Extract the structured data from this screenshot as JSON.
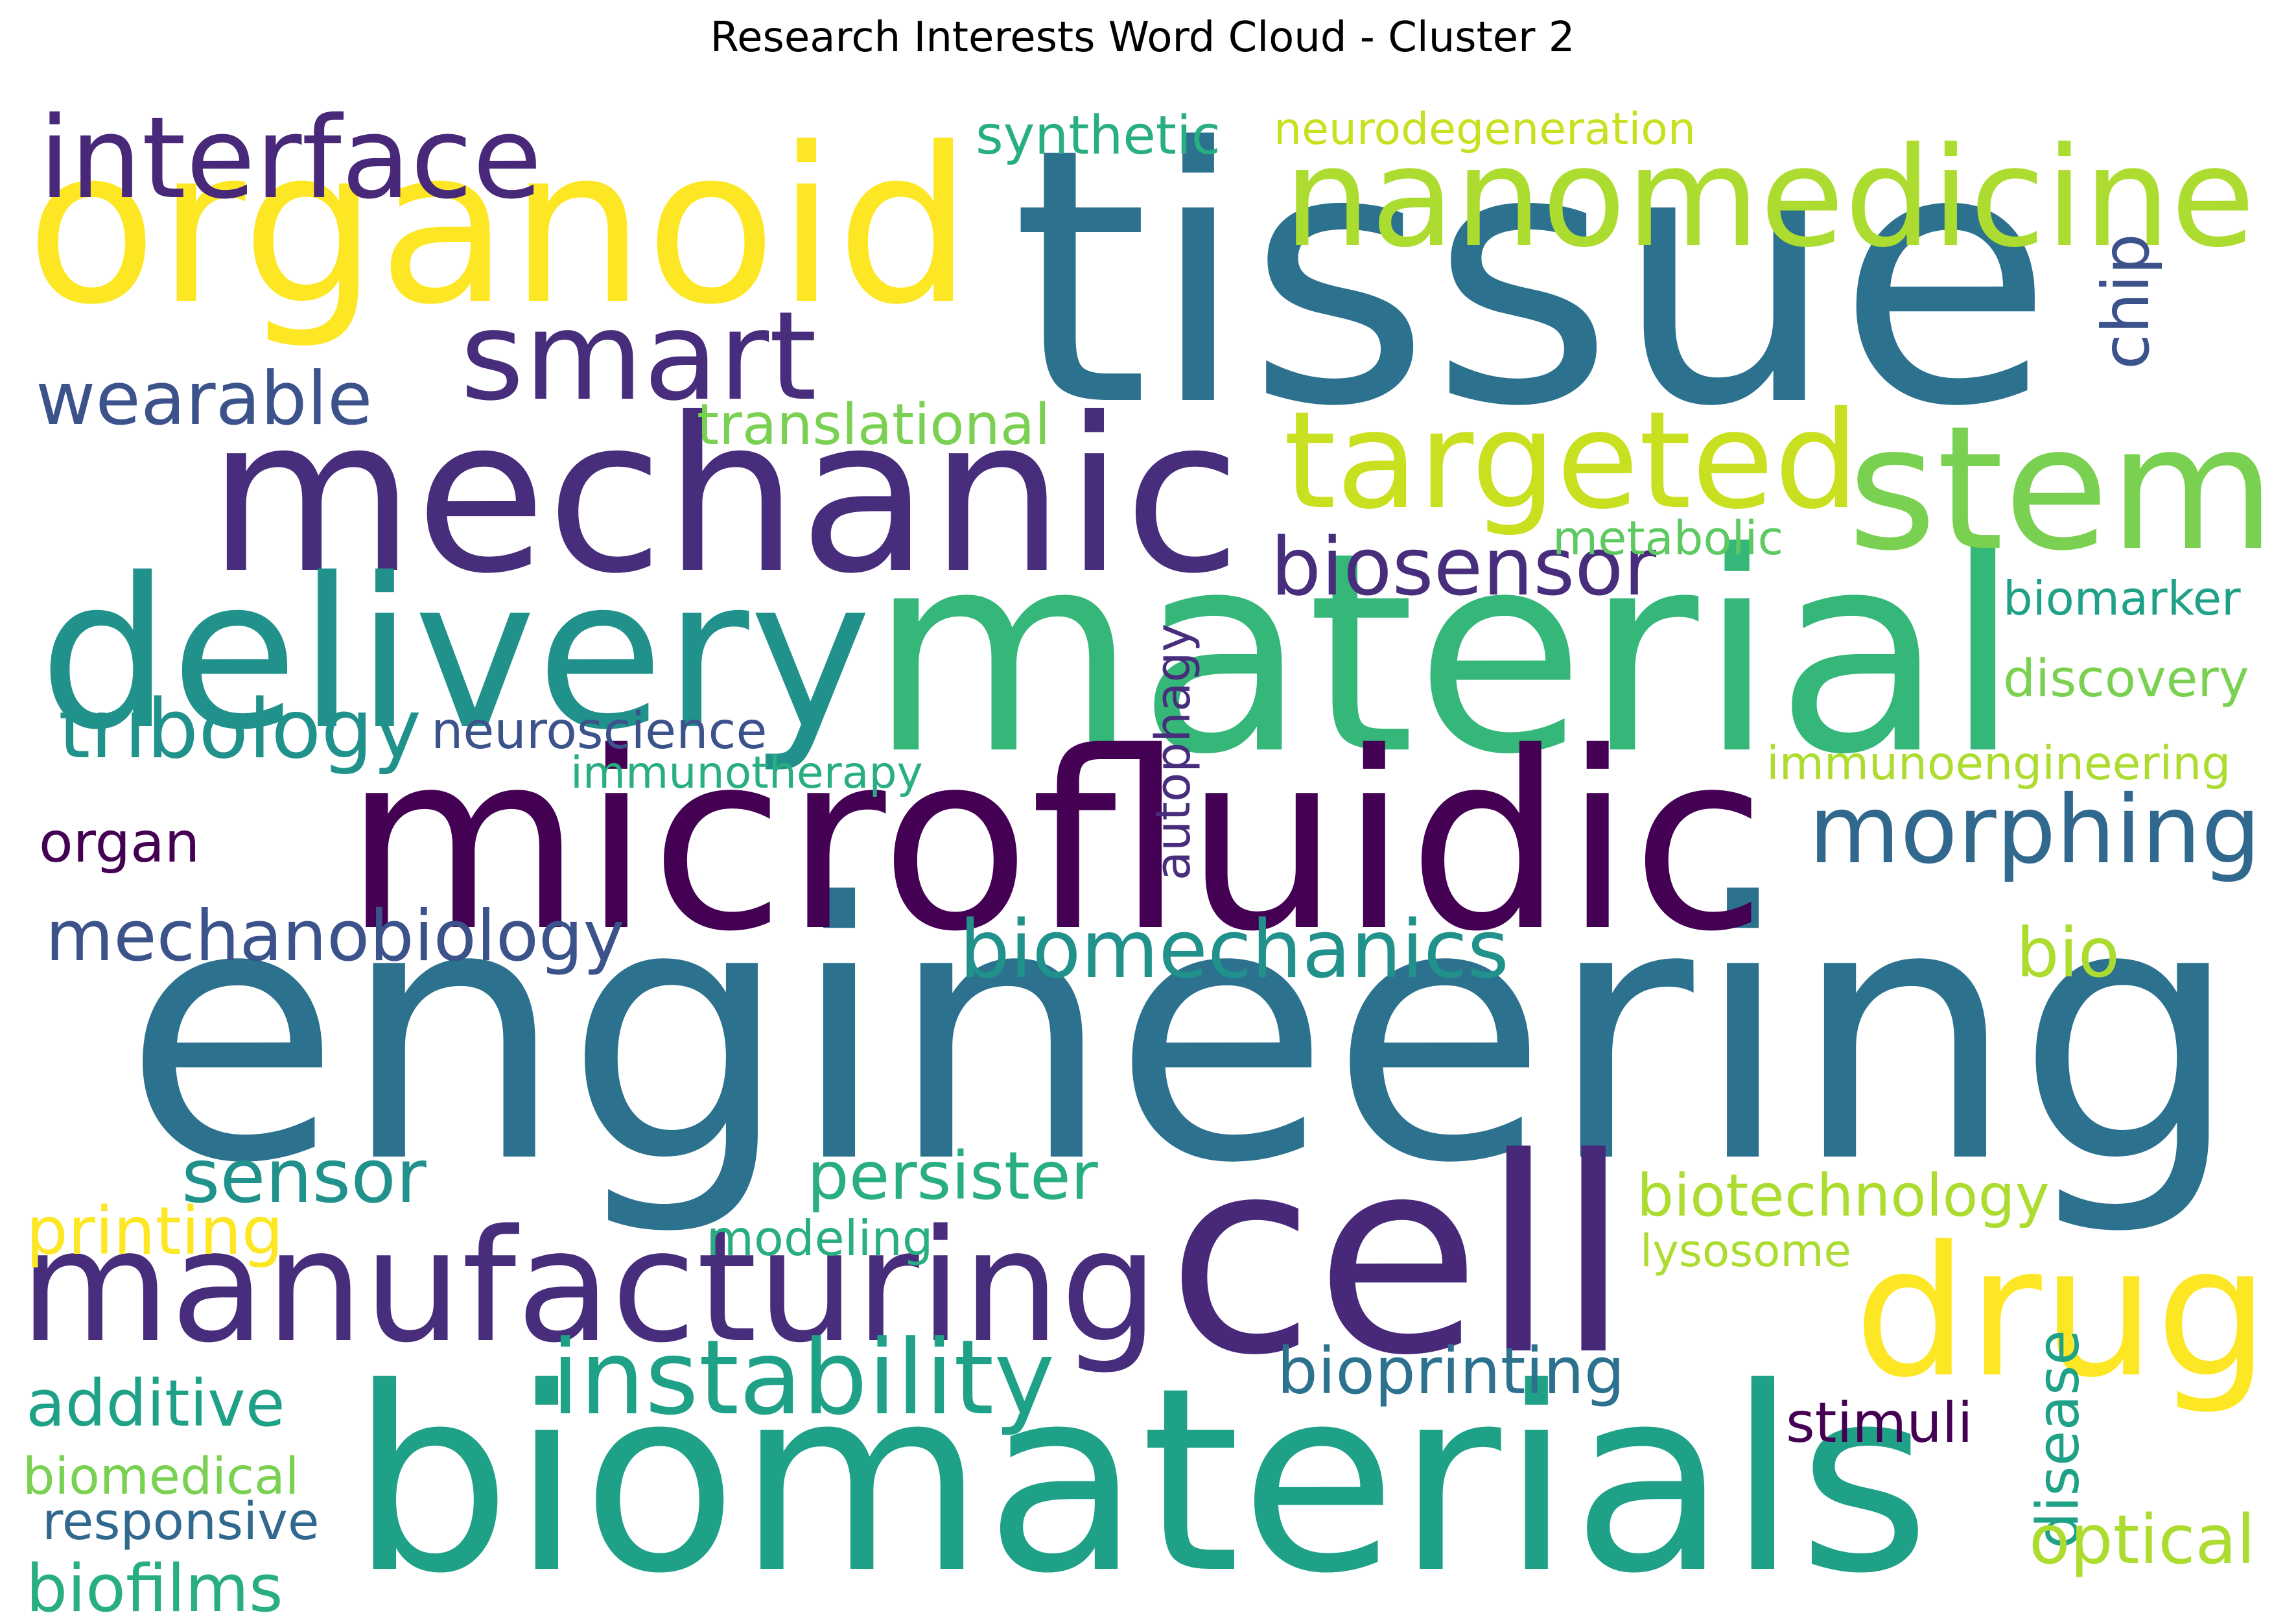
{
  "title": "Research Interests Word Cloud - Cluster 2",
  "colors": {
    "c0": "#440154",
    "c1": "#472d7b",
    "c2": "#3b528b",
    "c3": "#2c728e",
    "c4": "#21918c",
    "c5": "#28ae80",
    "c6": "#5ec962",
    "c7": "#addc30",
    "c8": "#fde725",
    "c9": "#31688e",
    "c10": "#482878",
    "c11": "#7ad151",
    "c12": "#c8e020",
    "c13": "#1fa187",
    "c14": "#35b779"
  },
  "words": [
    {
      "text": "engineering",
      "color": "c3"
    },
    {
      "text": "tissue",
      "color": "c3"
    },
    {
      "text": "material",
      "color": "c14"
    },
    {
      "text": "mechanic",
      "color": "c1"
    },
    {
      "text": "microfluidic",
      "color": "c0"
    },
    {
      "text": "biomaterials",
      "color": "c13"
    },
    {
      "text": "organoid",
      "color": "c8"
    },
    {
      "text": "cell",
      "color": "c10"
    },
    {
      "text": "delivery",
      "color": "c4"
    },
    {
      "text": "manufacturing",
      "color": "c1"
    },
    {
      "text": "drug",
      "color": "c8"
    },
    {
      "text": "nanomedicine",
      "color": "c7"
    },
    {
      "text": "stem",
      "color": "c11"
    },
    {
      "text": "targeted",
      "color": "c12"
    },
    {
      "text": "smart",
      "color": "c1"
    },
    {
      "text": "interface",
      "color": "c10"
    },
    {
      "text": "morphing",
      "color": "c9"
    },
    {
      "text": "instability",
      "color": "c13"
    },
    {
      "text": "biomechanics",
      "color": "c4"
    },
    {
      "text": "biosensor",
      "color": "c1"
    },
    {
      "text": "wearable",
      "color": "c2"
    },
    {
      "text": "tribology",
      "color": "c4"
    },
    {
      "text": "mechanobiology",
      "color": "c2"
    },
    {
      "text": "sensor",
      "color": "c4"
    },
    {
      "text": "translational",
      "color": "c11"
    },
    {
      "text": "synthetic",
      "color": "c5"
    },
    {
      "text": "neurodegeneration",
      "color": "c12"
    },
    {
      "text": "chip",
      "color": "c2"
    },
    {
      "text": "metabolic",
      "color": "c6"
    },
    {
      "text": "biomarker",
      "color": "c13"
    },
    {
      "text": "discovery",
      "color": "c11"
    },
    {
      "text": "immunoengineering",
      "color": "c7"
    },
    {
      "text": "neuroscience",
      "color": "c2"
    },
    {
      "text": "immunotherapy",
      "color": "c5"
    },
    {
      "text": "autophagy",
      "color": "c1"
    },
    {
      "text": "organ",
      "color": "c0"
    },
    {
      "text": "bio",
      "color": "c7"
    },
    {
      "text": "persister",
      "color": "c5"
    },
    {
      "text": "biotechnology",
      "color": "c7"
    },
    {
      "text": "printing",
      "color": "c8"
    },
    {
      "text": "modeling",
      "color": "c5"
    },
    {
      "text": "lysosome",
      "color": "c7"
    },
    {
      "text": "bioprinting",
      "color": "c3"
    },
    {
      "text": "additive",
      "color": "c13"
    },
    {
      "text": "stimuli",
      "color": "c0"
    },
    {
      "text": "disease",
      "color": "c13"
    },
    {
      "text": "biomedical",
      "color": "c11"
    },
    {
      "text": "responsive",
      "color": "c9"
    },
    {
      "text": "optical",
      "color": "c7"
    },
    {
      "text": "biofilms",
      "color": "c5"
    }
  ]
}
